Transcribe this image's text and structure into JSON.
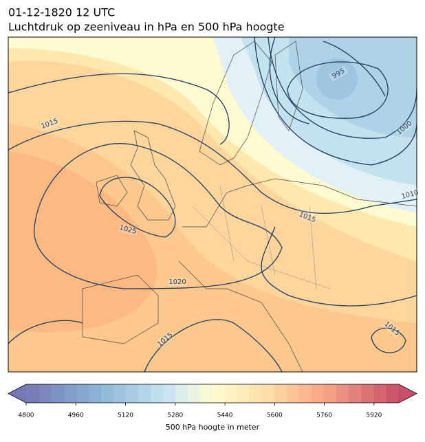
{
  "header": {
    "date": "01-12-1820 12 UTC",
    "title": "Luchtdruk op zeeniveau in hPa en 500 hPa hoogte"
  },
  "map": {
    "isobar_labels": [
      995,
      1000,
      1010,
      1015,
      1015,
      1025,
      1020,
      1015,
      1015
    ]
  },
  "colorbar": {
    "label": "500 hPa hoogte in meter",
    "lim": [
      4800,
      6000
    ],
    "ticks": [
      4800,
      4960,
      5120,
      5280,
      5440,
      5600,
      5760,
      5920
    ]
  }
}
